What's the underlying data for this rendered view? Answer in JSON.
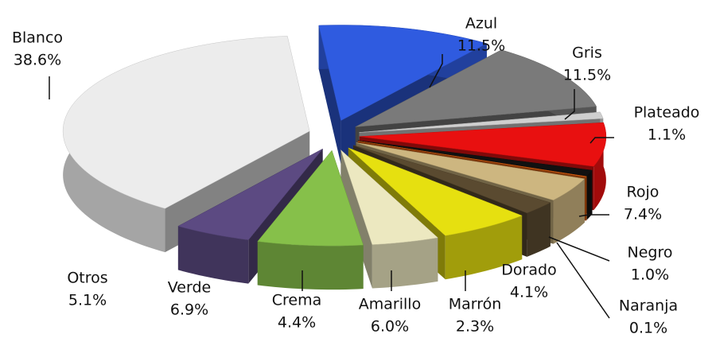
{
  "chart_data": {
    "type": "pie3d",
    "categories": [
      "Azul",
      "Gris",
      "Plateado",
      "Rojo",
      "Negro",
      "Naranja",
      "Dorado",
      "Marrón",
      "Amarillo",
      "Crema",
      "Verde",
      "Otros",
      "Blanco"
    ],
    "values": [
      11.5,
      11.5,
      1.1,
      7.4,
      1.0,
      0.1,
      4.1,
      2.3,
      6.0,
      4.4,
      6.9,
      5.1,
      38.6
    ],
    "value_labels": [
      "11.5%",
      "11.5%",
      "1.1%",
      "7.4%",
      "1.0%",
      "0.1%",
      "4.1%",
      "2.3%",
      "6.0%",
      "4.4%",
      "6.9%",
      "5.1%",
      "38.6%"
    ],
    "colors": [
      "#2f5be0",
      "#7a7a7a",
      "#cfcfcf",
      "#e81010",
      "#111111",
      "#e06010",
      "#cdb680",
      "#5a4a30",
      "#e6e010",
      "#ece8c0",
      "#86c04a",
      "#5c4a82",
      "#ececec"
    ]
  }
}
